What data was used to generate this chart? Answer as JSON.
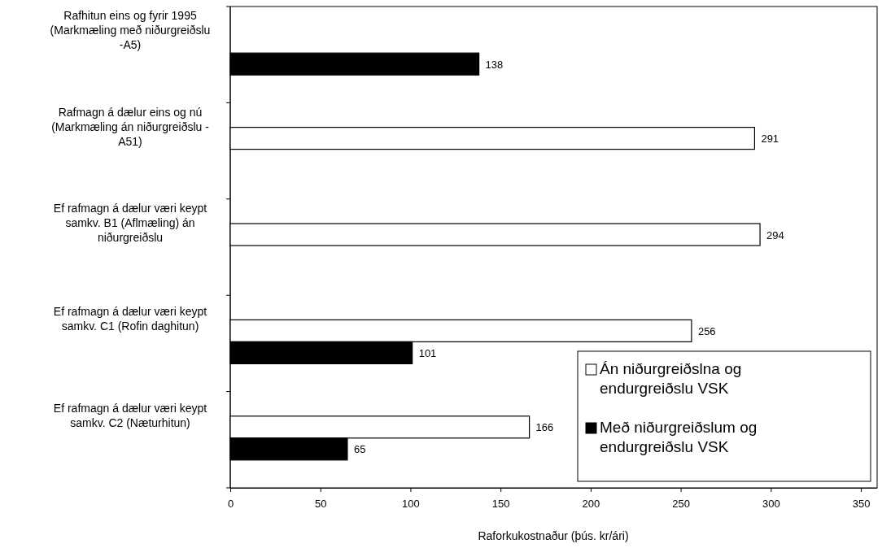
{
  "chart_data": {
    "type": "bar",
    "orientation": "horizontal",
    "xlabel": "Raforkukostnaður (þús. kr/ári)",
    "categories": [
      "Rafhitun eins og fyrir 1995 (Markmæling með niðurgreiðslu -A5)",
      "Rafmagn á dælur eins og nú (Markmæling án niðurgreiðslu - A51)",
      "Ef rafmagn á dælur væri keypt samkv. B1 (Aflmæling) án niðurgreiðslu",
      "Ef rafmagn á dælur væri keypt samkv. C1 (Rofin daghitun)",
      "Ef rafmagn á dælur væri keypt samkv. C2 (Næturhitun)"
    ],
    "series": [
      {
        "name": "Án niðurgreiðslna og endurgreiðslu VSK",
        "color": "#ffffff",
        "values": [
          null,
          291,
          294,
          256,
          166
        ]
      },
      {
        "name": "Með niðurgreiðslum og endurgreiðslu VSK",
        "color": "#000000",
        "values": [
          138,
          null,
          null,
          101,
          65
        ]
      }
    ],
    "xlim": [
      0,
      359
    ],
    "xticks": [
      0,
      50,
      100,
      150,
      200,
      250,
      300,
      350
    ],
    "data_labels": true,
    "grid": false,
    "legend": "bottom right"
  }
}
